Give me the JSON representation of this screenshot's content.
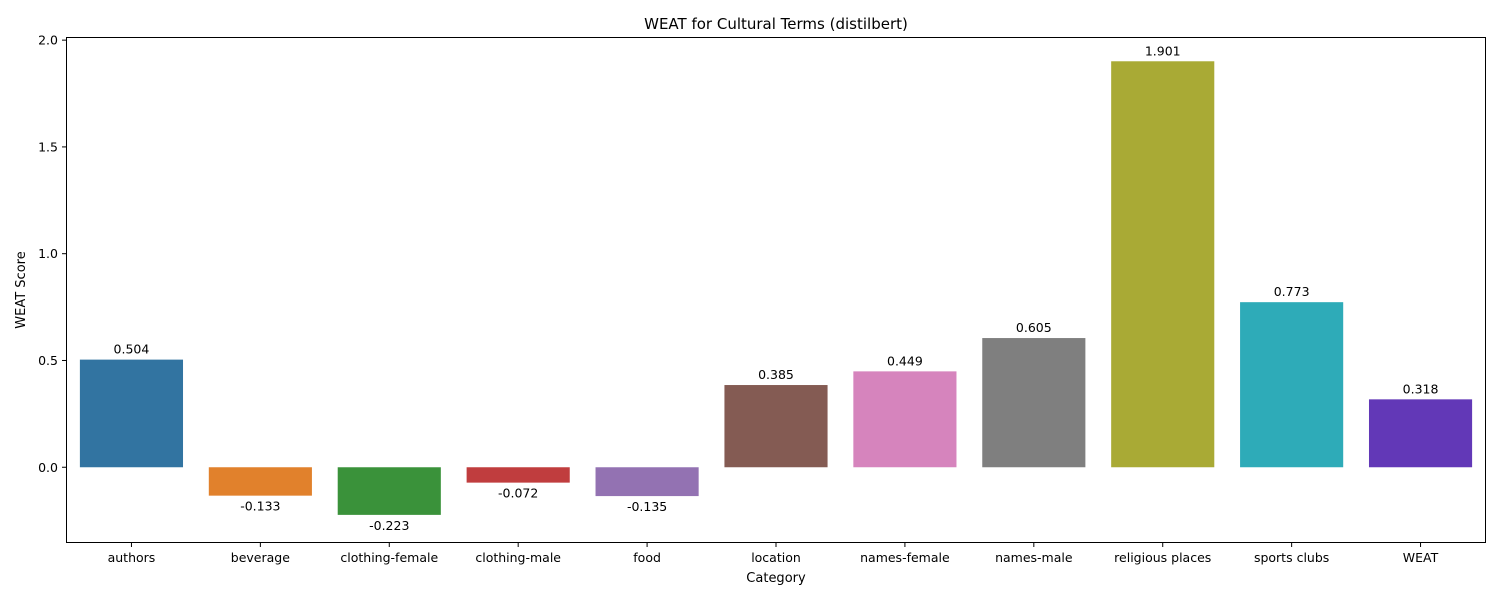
{
  "chart_data": {
    "type": "bar",
    "title": "WEAT for Cultural Terms (distilbert)",
    "xlabel": "Category",
    "ylabel": "WEAT Score",
    "categories": [
      "authors",
      "beverage",
      "clothing-female",
      "clothing-male",
      "food",
      "location",
      "names-female",
      "names-male",
      "religious places",
      "sports clubs",
      "WEAT"
    ],
    "values": [
      0.504,
      -0.133,
      -0.223,
      -0.072,
      -0.135,
      0.385,
      0.449,
      0.605,
      1.901,
      0.773,
      0.318
    ],
    "value_labels": [
      "0.504",
      "-0.133",
      "-0.223",
      "-0.072",
      "-0.135",
      "0.385",
      "0.449",
      "0.605",
      "1.901",
      "0.773",
      "0.318"
    ],
    "colors": [
      "#3274a1",
      "#e1812c",
      "#3a923a",
      "#c03d3e",
      "#9372b2",
      "#845b53",
      "#d684bd",
      "#7f7f7f",
      "#a9aa35",
      "#2eabb8",
      "#6238b7"
    ],
    "ylim": [
      -0.35,
      2.01
    ],
    "yticks": [
      0.0,
      0.5,
      1.0,
      1.5,
      2.0
    ],
    "ytick_labels": [
      "0.0",
      "0.5",
      "1.0",
      "1.5",
      "2.0"
    ],
    "grid": false,
    "legend": "none"
  }
}
